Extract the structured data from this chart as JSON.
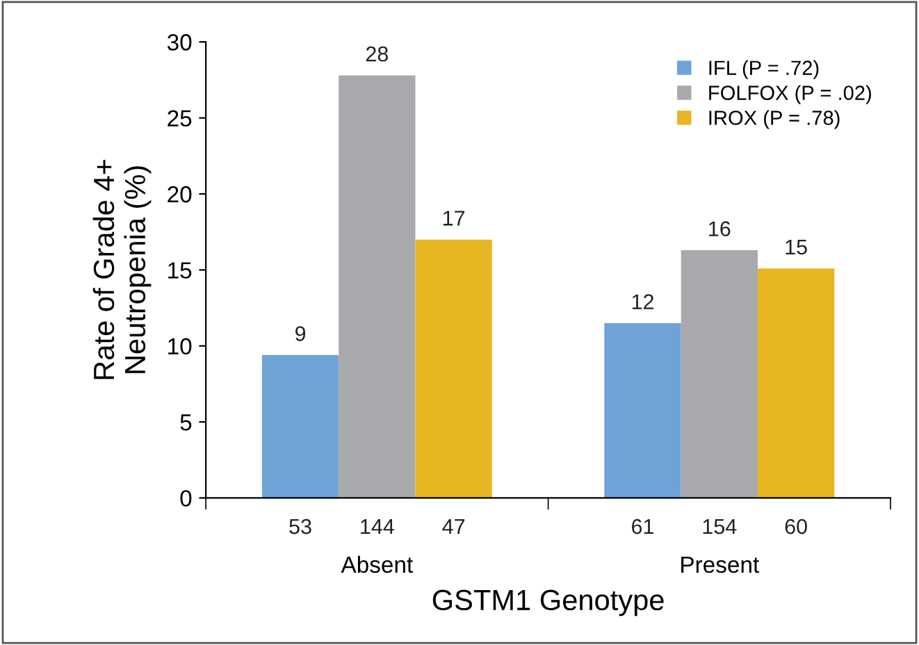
{
  "chart_data": {
    "type": "bar",
    "ylabel": "Rate of Grade 4+\nNeutropenia (%)",
    "xlabel": "GSTM1 Genotype",
    "categories": [
      "Absent",
      "Present"
    ],
    "series": [
      {
        "name": "IFL (P = .72)",
        "color": "#6fa3d8",
        "values": [
          9.4,
          11.5
        ],
        "value_labels": [
          "9",
          "12"
        ]
      },
      {
        "name": "FOLFOX (P = .02)",
        "color": "#a7a9ac",
        "values": [
          27.8,
          16.3
        ],
        "value_labels": [
          "28",
          "16"
        ]
      },
      {
        "name": "IROX (P = .78)",
        "color": "#e8b623",
        "values": [
          17.0,
          15.1
        ],
        "value_labels": [
          "17",
          "15"
        ]
      }
    ],
    "annotations": [
      "53",
      "144",
      "47",
      "61",
      "154",
      "60"
    ],
    "ylim": [
      0,
      30
    ],
    "yticks": [
      0,
      5,
      10,
      15,
      20,
      25,
      30
    ],
    "grid": false,
    "legend": "top right"
  }
}
